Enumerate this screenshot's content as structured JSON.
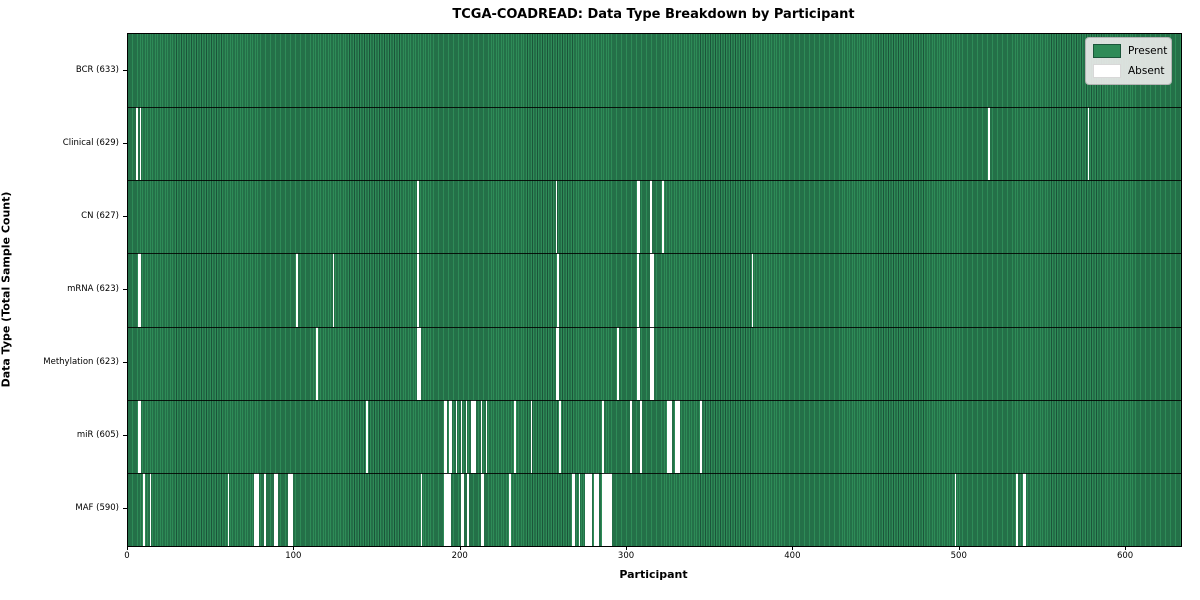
{
  "figure": {
    "title": "TCGA-COADREAD: Data Type Breakdown by Participant",
    "xlabel": "Participant",
    "ylabel": "Data Type (Total Sample Count)"
  },
  "legend": {
    "present_label": "Present",
    "absent_label": "Absent",
    "position": "upper right"
  },
  "colors": {
    "present_fill": "#2e8b57",
    "present_edge": "#1b563a",
    "absent_fill": "#ffffff",
    "legend_bg": "#e9e9e9",
    "legend_border": "#b3b3b3",
    "frame": "#000000"
  },
  "chart_data": {
    "type": "heatmap",
    "title": "TCGA-COADREAD: Data Type Breakdown by Participant",
    "xlabel": "Participant",
    "ylabel": "Data Type (Total Sample Count)",
    "xlim": [
      0,
      633
    ],
    "n_participants": 633,
    "x_ticks": [
      0,
      100,
      200,
      300,
      400,
      500,
      600
    ],
    "grid": false,
    "legend_entries": [
      "Present",
      "Absent"
    ],
    "legend_position": "upper right",
    "rows": [
      {
        "name": "BCR",
        "label": "BCR (633)",
        "total_present": 633,
        "absent_participants": []
      },
      {
        "name": "Clinical",
        "label": "Clinical (629)",
        "total_present": 629,
        "absent_participants": [
          5,
          7,
          517,
          577
        ]
      },
      {
        "name": "CN",
        "label": "CN (627)",
        "total_present": 627,
        "absent_participants": [
          174,
          257,
          306,
          307,
          314,
          321
        ]
      },
      {
        "name": "mRNA",
        "label": "mRNA (623)",
        "total_present": 623,
        "absent_participants": [
          6,
          7,
          101,
          123,
          174,
          258,
          306,
          314,
          315,
          375
        ]
      },
      {
        "name": "Methylation",
        "label": "Methylation (623)",
        "total_present": 623,
        "absent_participants": [
          113,
          174,
          175,
          257,
          258,
          294,
          306,
          307,
          314,
          315
        ]
      },
      {
        "name": "miR",
        "label": "miR (605)",
        "total_present": 605,
        "absent_participants": [
          6,
          7,
          143,
          190,
          191,
          193,
          194,
          197,
          200,
          203,
          206,
          207,
          208,
          212,
          215,
          232,
          242,
          259,
          285,
          302,
          308,
          324,
          325,
          326,
          329,
          330,
          331,
          344
        ]
      },
      {
        "name": "MAF",
        "label": "MAF (590)",
        "total_present": 590,
        "absent_participants": [
          9,
          13,
          60,
          76,
          77,
          78,
          82,
          88,
          89,
          96,
          97,
          98,
          176,
          190,
          191,
          192,
          193,
          200,
          201,
          204,
          212,
          213,
          229,
          267,
          268,
          271,
          275,
          276,
          277,
          278,
          280,
          281,
          282,
          285,
          286,
          287,
          288,
          289,
          290,
          497,
          534,
          538,
          539
        ]
      }
    ]
  }
}
